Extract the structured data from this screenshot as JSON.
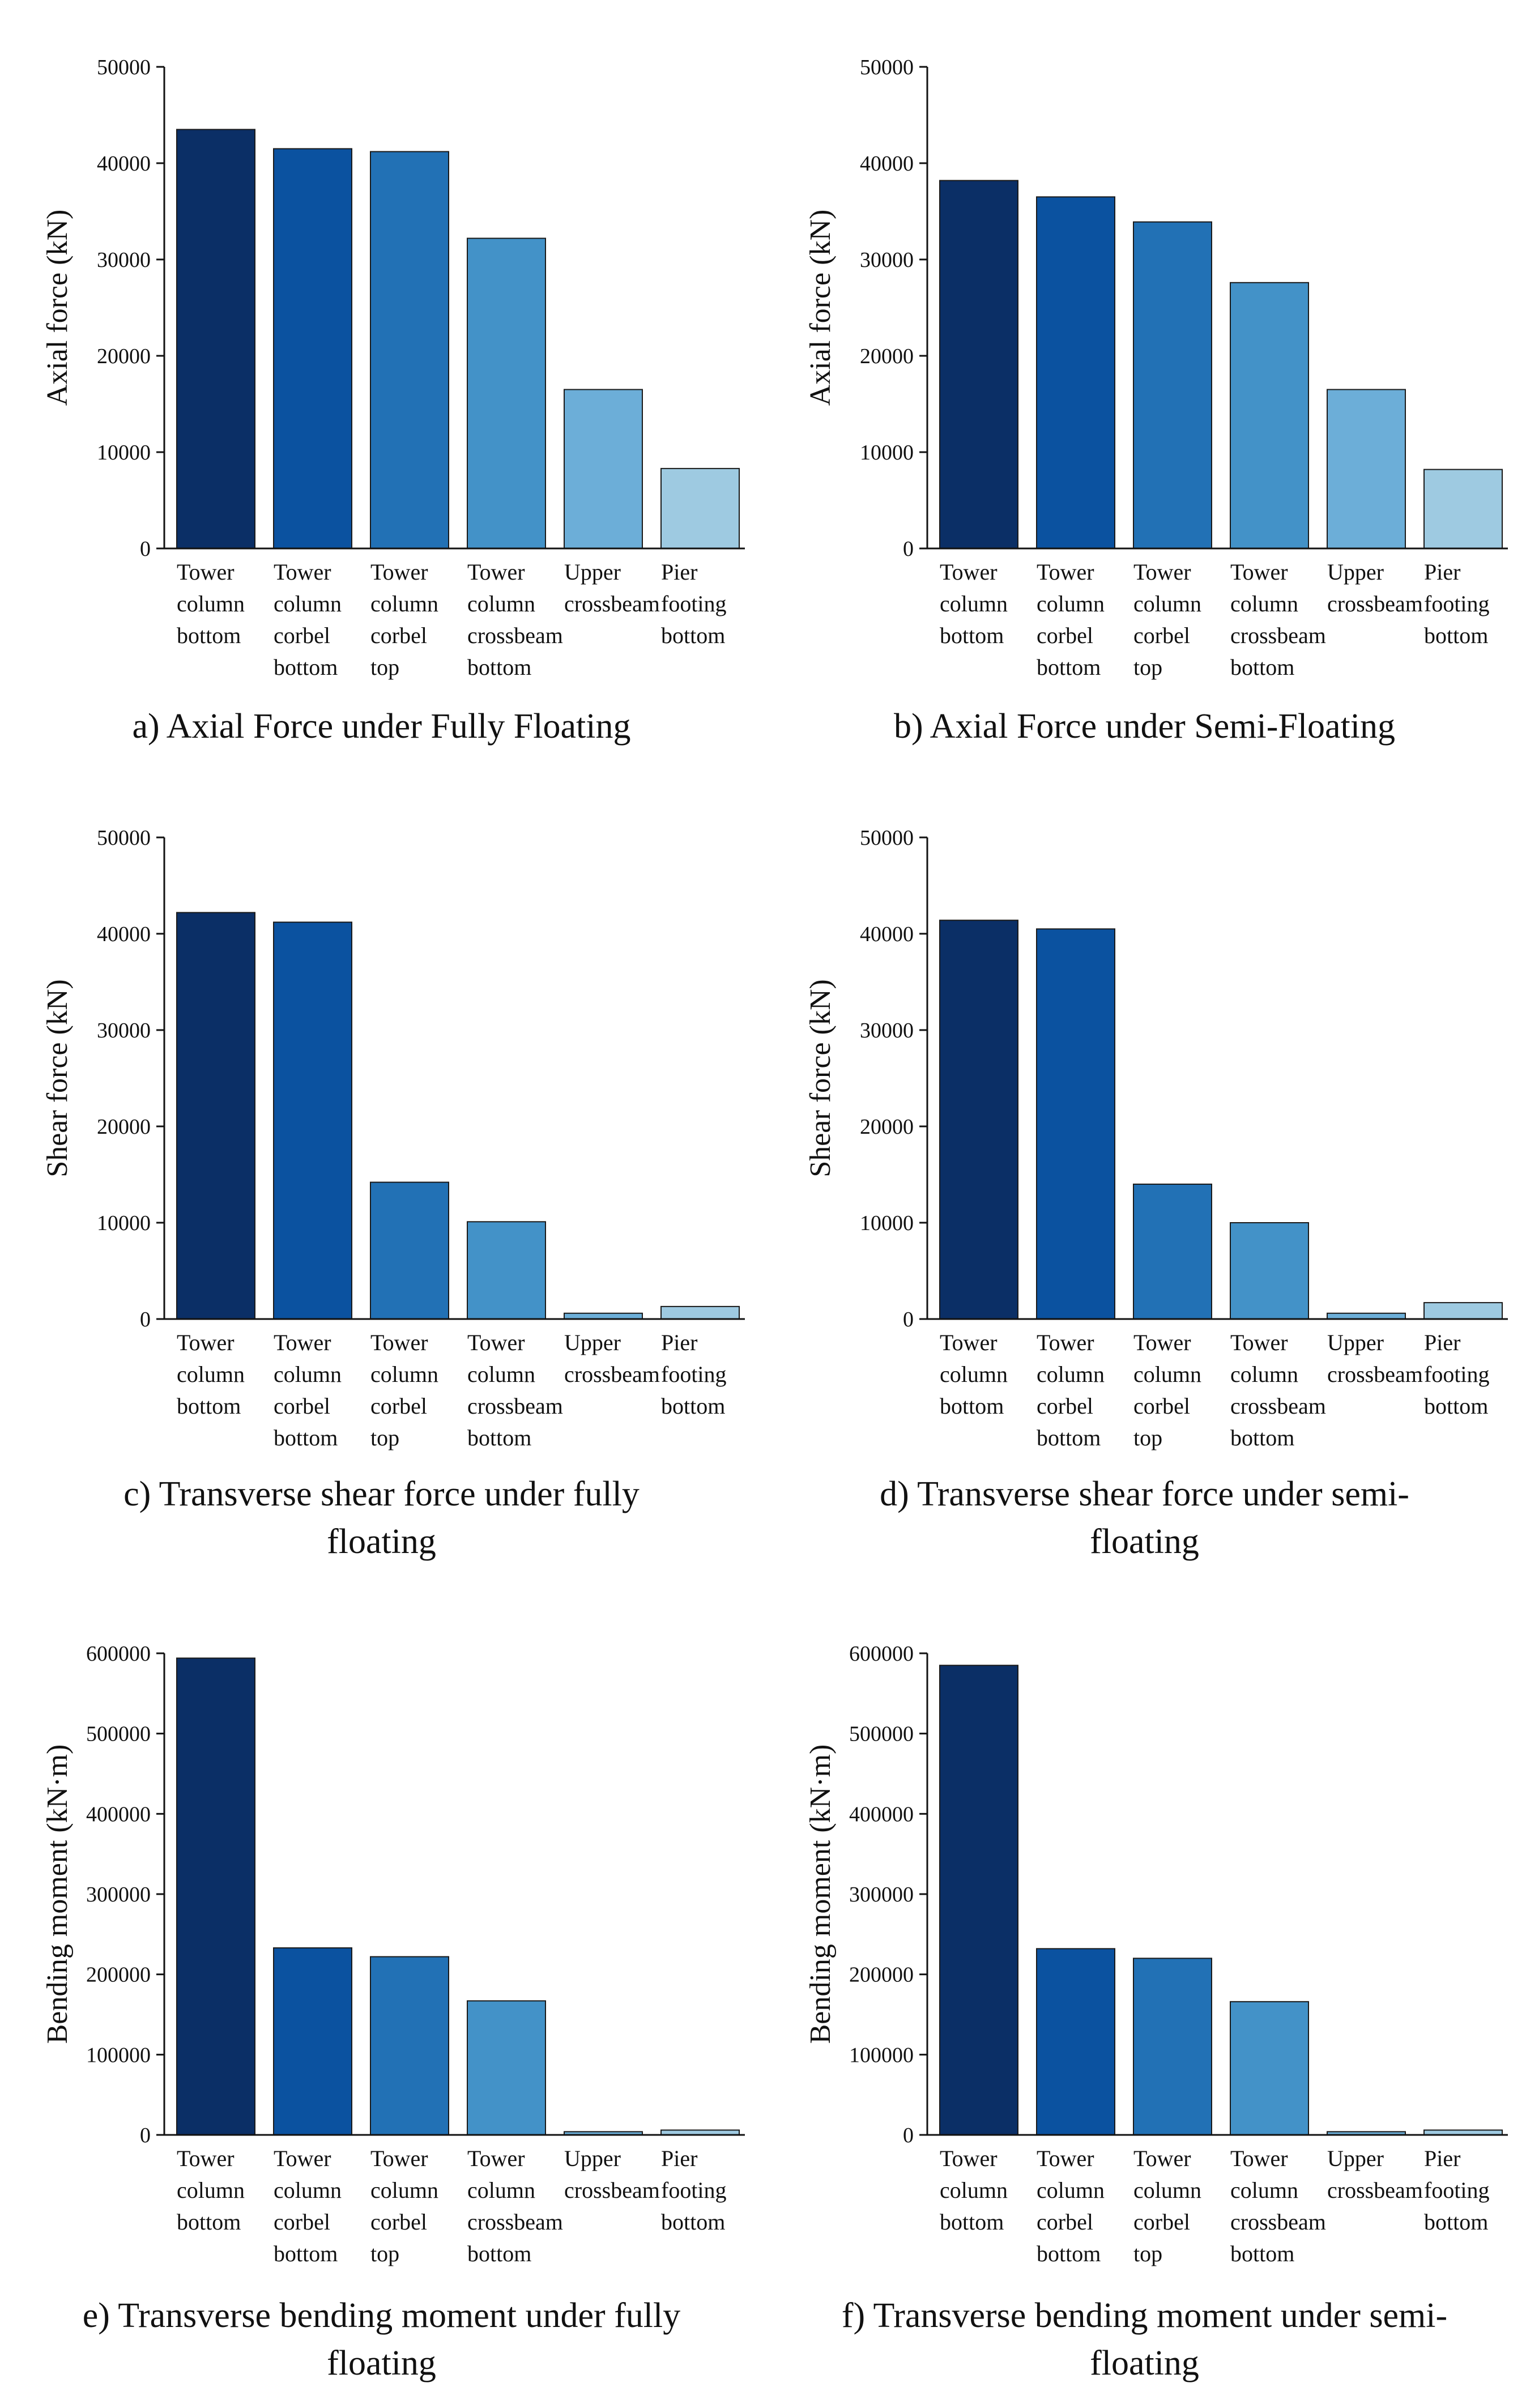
{
  "categories_lines": [
    [
      "Tower",
      "column",
      "bottom"
    ],
    [
      "Tower",
      "column",
      "corbel",
      "bottom"
    ],
    [
      "Tower",
      "column",
      "corbel",
      "top"
    ],
    [
      "Tower",
      "column",
      "crossbeam",
      "bottom"
    ],
    [
      "Upper",
      "crossbeam"
    ],
    [
      "Pier",
      "footing",
      "bottom"
    ]
  ],
  "colors": [
    "#0b2f66",
    "#0b52a0",
    "#2271b5",
    "#4392c8",
    "#6caed8",
    "#9ecae1"
  ],
  "chart_data": [
    {
      "type": "bar",
      "caption": "a) Axial Force under Fully Floating",
      "ylabel": "Axial force (kN)",
      "ylim": [
        0,
        50000
      ],
      "yticks": [
        "0",
        "10000",
        "20000",
        "30000",
        "40000",
        "50000"
      ],
      "categories": [
        "Tower column bottom",
        "Tower column corbel bottom",
        "Tower column corbel top",
        "Tower column crossbeam bottom",
        "Upper crossbeam",
        "Pier footing bottom"
      ],
      "values": [
        43500,
        41500,
        41200,
        32200,
        16500,
        8300
      ]
    },
    {
      "type": "bar",
      "caption": "b) Axial Force under Semi-Floating",
      "ylabel": "Axial force (kN)",
      "ylim": [
        0,
        50000
      ],
      "yticks": [
        "0",
        "10000",
        "20000",
        "30000",
        "40000",
        "50000"
      ],
      "categories": [
        "Tower column bottom",
        "Tower column corbel bottom",
        "Tower column corbel top",
        "Tower column crossbeam bottom",
        "Upper crossbeam",
        "Pier footing bottom"
      ],
      "values": [
        38200,
        36500,
        33900,
        27600,
        16500,
        8200
      ]
    },
    {
      "type": "bar",
      "caption": "c) Transverse shear force under fully floating",
      "ylabel": "Shear force (kN)",
      "ylim": [
        0,
        50000
      ],
      "yticks": [
        "0",
        "10000",
        "20000",
        "30000",
        "40000",
        "50000"
      ],
      "categories": [
        "Tower column bottom",
        "Tower column corbel bottom",
        "Tower column corbel top",
        "Tower column crossbeam bottom",
        "Upper crossbeam",
        "Pier footing bottom"
      ],
      "values": [
        42200,
        41200,
        14200,
        10100,
        600,
        1300
      ]
    },
    {
      "type": "bar",
      "caption": "d) Transverse shear force under semi-floating",
      "ylabel": "Shear force (kN)",
      "ylim": [
        0,
        50000
      ],
      "yticks": [
        "0",
        "10000",
        "20000",
        "30000",
        "40000",
        "50000"
      ],
      "categories": [
        "Tower column bottom",
        "Tower column corbel bottom",
        "Tower column corbel top",
        "Tower column crossbeam bottom",
        "Upper crossbeam",
        "Pier footing bottom"
      ],
      "values": [
        41400,
        40500,
        14000,
        10000,
        600,
        1700
      ]
    },
    {
      "type": "bar",
      "caption": "e) Transverse bending moment under fully floating",
      "ylabel": "Bending moment (kN·m)",
      "ylim": [
        0,
        600000
      ],
      "yticks": [
        "0",
        "100000",
        "200000",
        "300000",
        "400000",
        "500000",
        "600000"
      ],
      "categories": [
        "Tower column bottom",
        "Tower column corbel bottom",
        "Tower column corbel top",
        "Tower column crossbeam bottom",
        "Upper crossbeam",
        "Pier footing bottom"
      ],
      "values": [
        594000,
        233000,
        222000,
        167000,
        4000,
        6000
      ]
    },
    {
      "type": "bar",
      "caption": "f) Transverse bending moment under semi-floating",
      "ylabel": "Bending moment (kN·m)",
      "ylim": [
        0,
        600000
      ],
      "yticks": [
        "0",
        "100000",
        "200000",
        "300000",
        "400000",
        "500000",
        "600000"
      ],
      "categories": [
        "Tower column bottom",
        "Tower column corbel bottom",
        "Tower column corbel top",
        "Tower column crossbeam bottom",
        "Upper crossbeam",
        "Pier footing bottom"
      ],
      "values": [
        585000,
        232000,
        220000,
        166000,
        4000,
        6000
      ]
    }
  ]
}
